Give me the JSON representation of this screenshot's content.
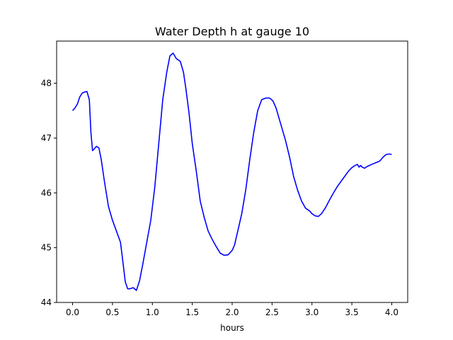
{
  "chart_data": {
    "type": "line",
    "title": "Water Depth h at gauge 10",
    "xlabel": "hours",
    "ylabel": "",
    "xlim": [
      -0.2,
      4.2
    ],
    "ylim": [
      44.0,
      48.77
    ],
    "xticks": [
      0.0,
      0.5,
      1.0,
      1.5,
      2.0,
      2.5,
      3.0,
      3.5,
      4.0
    ],
    "xtick_labels": [
      "0.0",
      "0.5",
      "1.0",
      "1.5",
      "2.0",
      "2.5",
      "3.0",
      "3.5",
      "4.0"
    ],
    "yticks": [
      44,
      45,
      46,
      47,
      48
    ],
    "ytick_labels": [
      "44",
      "45",
      "46",
      "47",
      "48"
    ],
    "grid": false,
    "series": [
      {
        "color": "#0000ff",
        "x": [
          0.0,
          0.03,
          0.06,
          0.09,
          0.12,
          0.15,
          0.18,
          0.21,
          0.23,
          0.25,
          0.27,
          0.3,
          0.33,
          0.36,
          0.4,
          0.45,
          0.5,
          0.55,
          0.6,
          0.63,
          0.66,
          0.69,
          0.72,
          0.76,
          0.8,
          0.84,
          0.88,
          0.93,
          0.98,
          1.03,
          1.08,
          1.13,
          1.18,
          1.22,
          1.26,
          1.3,
          1.32,
          1.35,
          1.39,
          1.42,
          1.46,
          1.5,
          1.55,
          1.6,
          1.65,
          1.7,
          1.75,
          1.8,
          1.85,
          1.9,
          1.95,
          2.0,
          2.03,
          2.07,
          2.12,
          2.17,
          2.22,
          2.27,
          2.32,
          2.37,
          2.42,
          2.47,
          2.51,
          2.55,
          2.58,
          2.62,
          2.67,
          2.72,
          2.77,
          2.82,
          2.87,
          2.92,
          2.97,
          3.0,
          3.04,
          3.08,
          3.12,
          3.17,
          3.22,
          3.27,
          3.32,
          3.37,
          3.42,
          3.46,
          3.5,
          3.54,
          3.57,
          3.59,
          3.61,
          3.63,
          3.66,
          3.69,
          3.72,
          3.75,
          3.8,
          3.85,
          3.89,
          3.93,
          3.97,
          4.0
        ],
        "y": [
          47.5,
          47.55,
          47.62,
          47.75,
          47.82,
          47.84,
          47.85,
          47.7,
          47.1,
          46.77,
          46.8,
          46.85,
          46.82,
          46.6,
          46.2,
          45.75,
          45.5,
          45.3,
          45.1,
          44.75,
          44.38,
          44.25,
          44.25,
          44.27,
          44.22,
          44.4,
          44.7,
          45.1,
          45.5,
          46.1,
          46.9,
          47.7,
          48.2,
          48.5,
          48.55,
          48.45,
          48.43,
          48.4,
          48.2,
          47.9,
          47.45,
          46.9,
          46.4,
          45.85,
          45.55,
          45.3,
          45.15,
          45.02,
          44.9,
          44.86,
          44.87,
          44.95,
          45.05,
          45.3,
          45.62,
          46.05,
          46.6,
          47.1,
          47.5,
          47.7,
          47.73,
          47.73,
          47.68,
          47.55,
          47.4,
          47.2,
          46.95,
          46.65,
          46.3,
          46.05,
          45.85,
          45.72,
          45.67,
          45.62,
          45.58,
          45.57,
          45.62,
          45.73,
          45.87,
          46.0,
          46.12,
          46.22,
          46.32,
          46.4,
          46.46,
          46.5,
          46.52,
          46.47,
          46.5,
          46.47,
          46.45,
          46.48,
          46.5,
          46.52,
          46.55,
          46.58,
          46.65,
          46.7,
          46.71,
          46.7
        ]
      }
    ]
  }
}
